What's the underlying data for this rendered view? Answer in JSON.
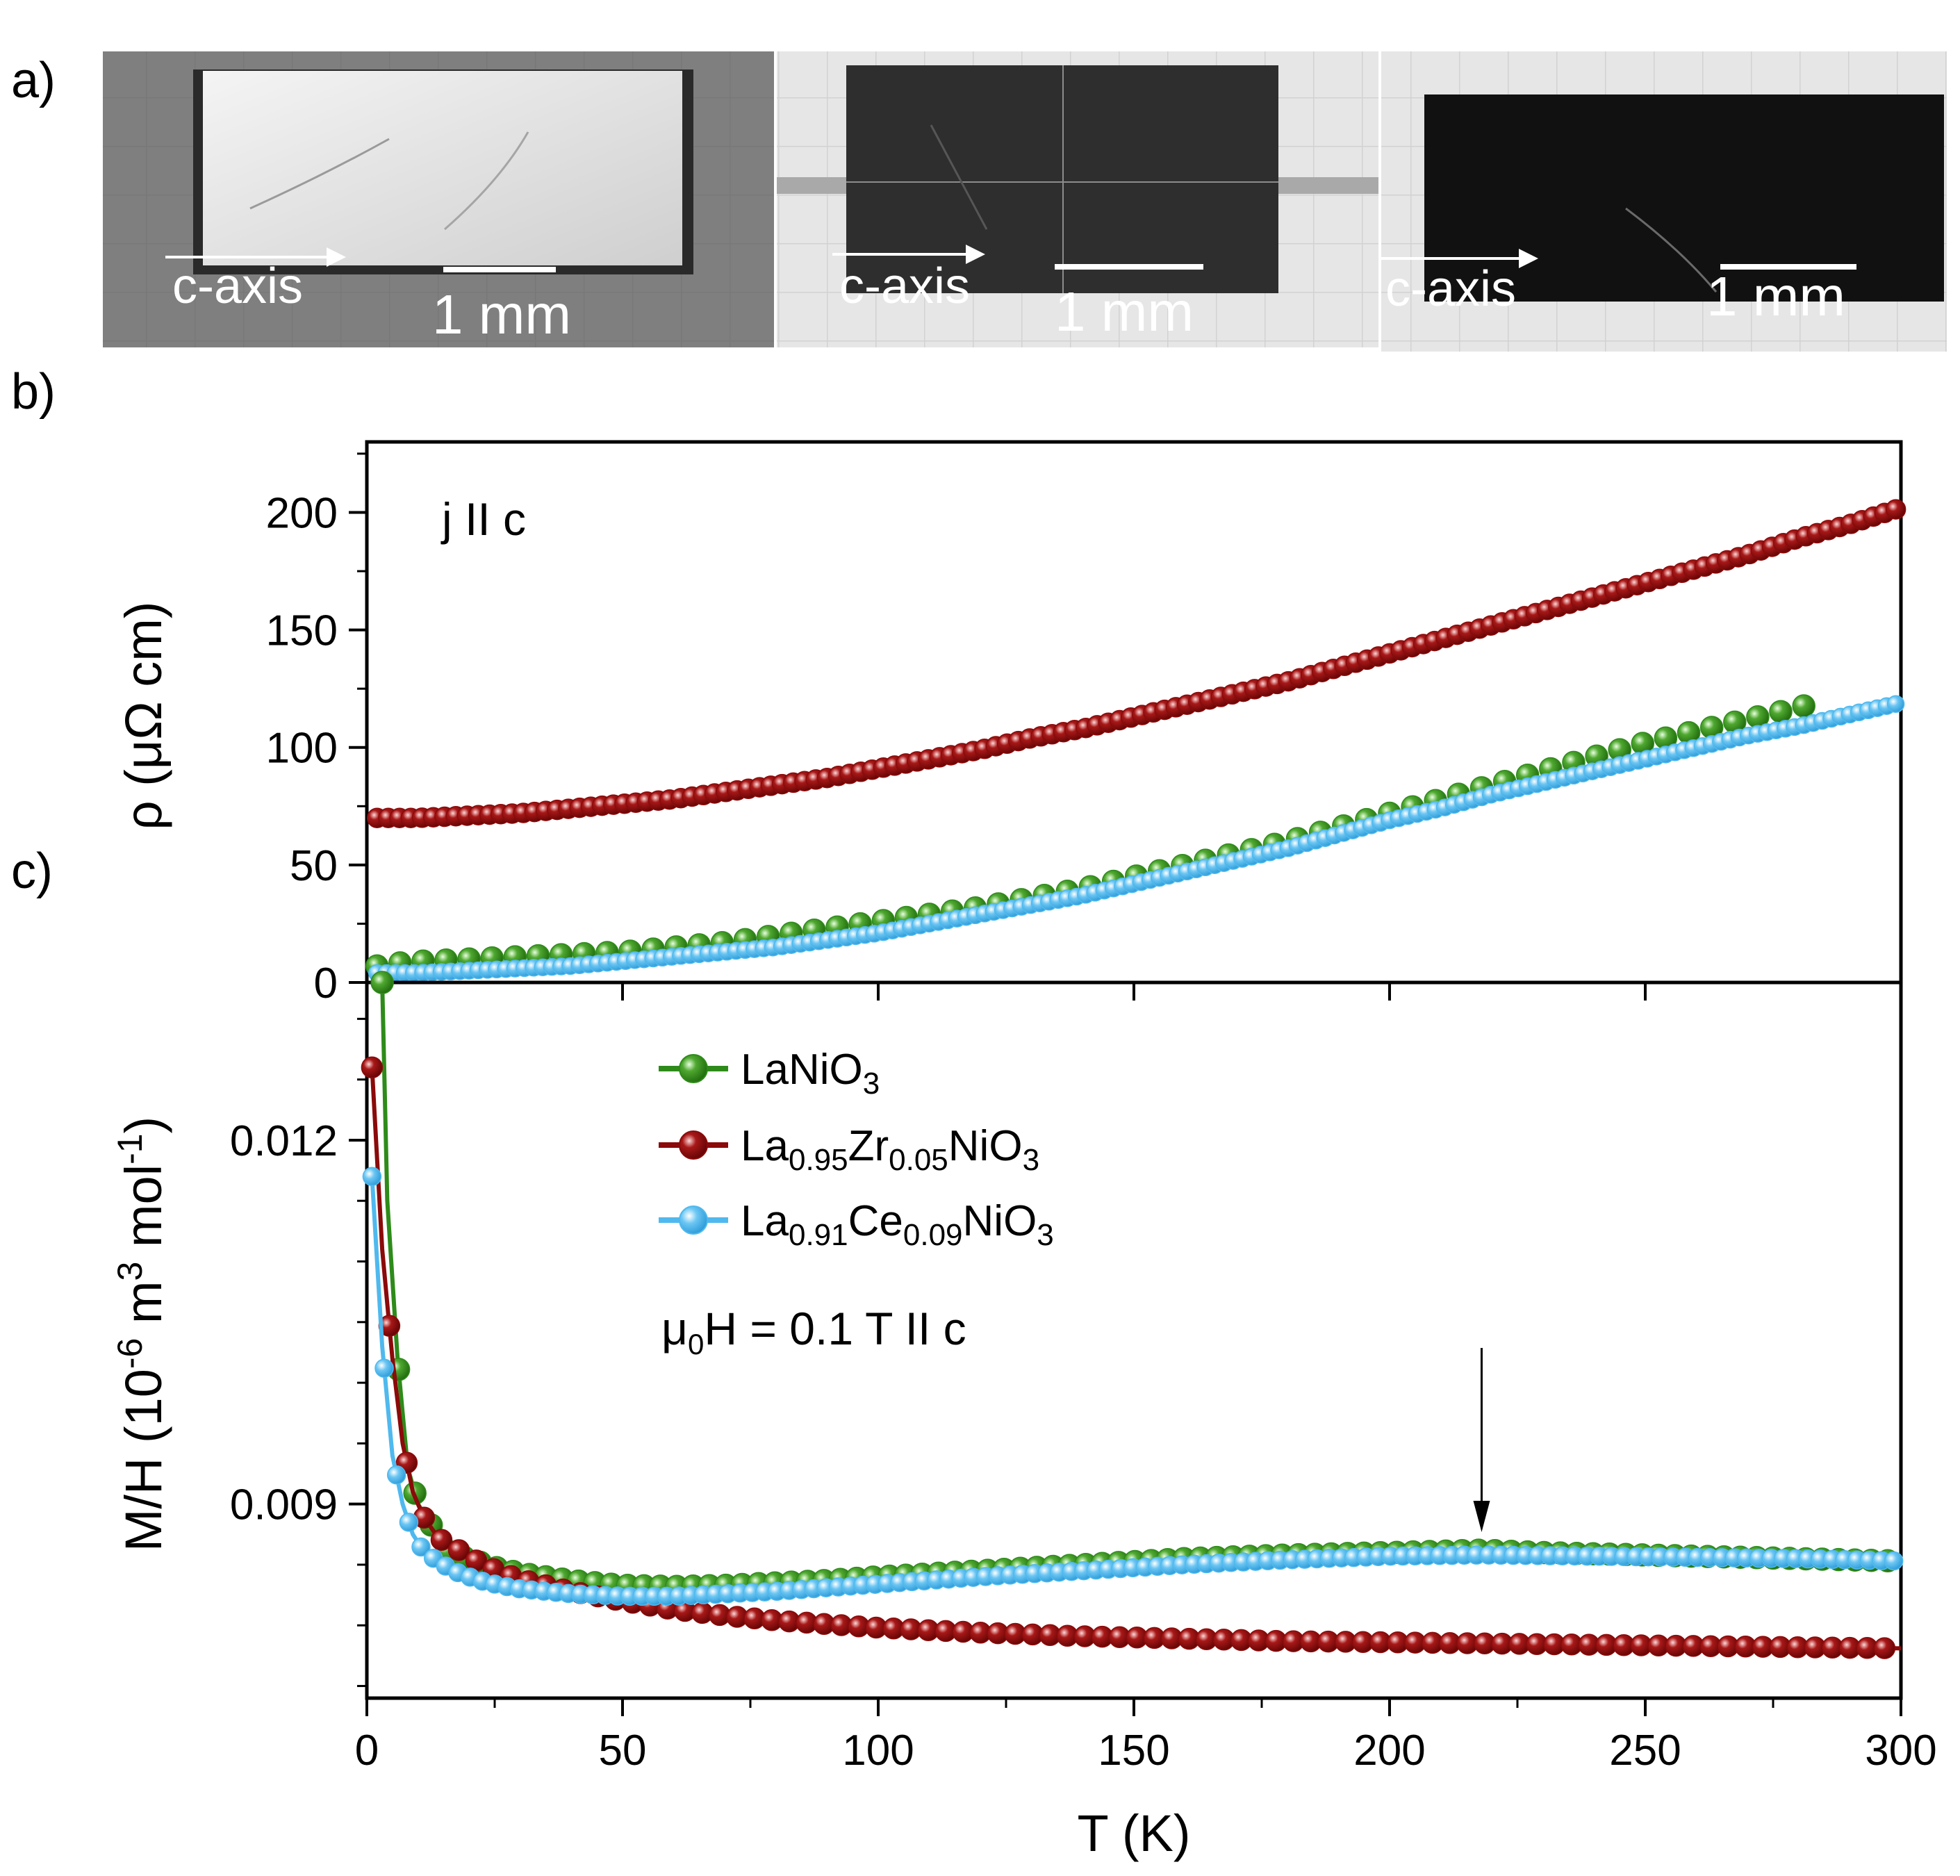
{
  "panels": {
    "a": "a)",
    "b": "b)",
    "c": "c)"
  },
  "photos": [
    {
      "axis_label": "c-axis",
      "scale_label": "1 mm",
      "tone": "light"
    },
    {
      "axis_label": "c-axis",
      "scale_label": "1 mm",
      "tone": "dark"
    },
    {
      "axis_label": "c-axis",
      "scale_label": "1 mm",
      "tone": "dark"
    }
  ],
  "colors": {
    "green": "#2e8b1a",
    "red": "#8b0a0a",
    "blue": "#4fb9ee"
  },
  "chart_data": [
    {
      "type": "scatter",
      "panel": "b",
      "annotation": "j II c",
      "xlabel": "",
      "ylabel": "ρ (μΩ cm)",
      "xlim": [
        0,
        300
      ],
      "ylim": [
        0,
        230
      ],
      "yticks": [
        0,
        50,
        100,
        150,
        200
      ],
      "series": [
        {
          "name": "LaNiO3",
          "color": "#2e8b1a",
          "x": [
            2,
            5,
            10,
            20,
            30,
            40,
            50,
            60,
            70,
            80,
            90,
            100,
            110,
            120,
            130,
            140,
            150,
            160,
            170,
            180,
            190,
            200,
            210,
            220,
            230,
            240,
            250,
            260,
            270,
            280,
            283
          ],
          "y": [
            7,
            8,
            9,
            10,
            11,
            12,
            13,
            15,
            17,
            20,
            23,
            26,
            29,
            32,
            36,
            40,
            45,
            50,
            55,
            60,
            66,
            72,
            78,
            84,
            90,
            96,
            102,
            107,
            112,
            117,
            119
          ]
        },
        {
          "name": "La0.95Zr0.05NiO3",
          "color": "#8b0a0a",
          "x": [
            2,
            10,
            20,
            30,
            40,
            50,
            60,
            70,
            80,
            90,
            100,
            110,
            120,
            130,
            140,
            150,
            160,
            170,
            180,
            190,
            200,
            210,
            220,
            230,
            240,
            250,
            260,
            270,
            280,
            290,
            300
          ],
          "y": [
            70,
            70,
            71,
            72,
            74,
            76,
            78,
            81,
            84,
            87,
            91,
            95,
            99,
            104,
            108,
            113,
            118,
            123,
            128,
            134,
            140,
            146,
            152,
            158,
            164,
            170,
            176,
            182,
            189,
            195,
            202
          ]
        },
        {
          "name": "La0.91Ce0.09NiO3",
          "color": "#4fb9ee",
          "x": [
            2,
            10,
            20,
            30,
            40,
            50,
            60,
            70,
            80,
            90,
            100,
            110,
            120,
            130,
            140,
            150,
            160,
            170,
            180,
            190,
            200,
            210,
            220,
            230,
            240,
            250,
            260,
            270,
            280,
            290,
            300
          ],
          "y": [
            4,
            4,
            5,
            6,
            7,
            9,
            11,
            13,
            15,
            18,
            21,
            25,
            29,
            33,
            37,
            42,
            47,
            52,
            57,
            63,
            69,
            74,
            80,
            85,
            90,
            95,
            100,
            105,
            109,
            114,
            119
          ]
        }
      ]
    },
    {
      "type": "line",
      "panel": "c",
      "xlabel": "T (K)",
      "ylabel_main": "M/H (10",
      "ylabel_exp1": "-6",
      "ylabel_mid": " m",
      "ylabel_exp2": "3",
      "ylabel_mid2": " mol",
      "ylabel_exp3": "-1",
      "ylabel_end": ")",
      "xlim": [
        0,
        300
      ],
      "ylim": [
        0.0074,
        0.0133
      ],
      "xticks": [
        0,
        50,
        100,
        150,
        200,
        250,
        300
      ],
      "yticks": [
        0.009,
        0.012
      ],
      "ytick_labels": [
        "0.009",
        "0.012"
      ],
      "arrow_at_T": 218,
      "field_label_mu": "μ",
      "field_label_sub": "0",
      "field_label_rest": "H = 0.1 T II c",
      "legend": [
        {
          "base": "LaNiO",
          "parts": [
            [
              "3",
              "sub"
            ]
          ]
        },
        {
          "base": "La",
          "parts": [
            [
              "0.95",
              "sub"
            ],
            [
              "Zr",
              "norm"
            ],
            [
              "0.05",
              "sub"
            ],
            [
              "NiO",
              "norm"
            ],
            [
              "3",
              "sub"
            ]
          ]
        },
        {
          "base": "La",
          "parts": [
            [
              "0.91",
              "sub"
            ],
            [
              "Ce",
              "norm"
            ],
            [
              "0.09",
              "sub"
            ],
            [
              "NiO",
              "norm"
            ],
            [
              "3",
              "sub"
            ]
          ]
        }
      ],
      "series": [
        {
          "name": "LaNiO3",
          "color": "#2e8b1a",
          "x": [
            3,
            4,
            6,
            8,
            10,
            13,
            16,
            20,
            25,
            30,
            40,
            50,
            60,
            70,
            80,
            90,
            100,
            120,
            140,
            160,
            180,
            200,
            218,
            230,
            250,
            270,
            290,
            300
          ],
          "y": [
            0.0133,
            0.0115,
            0.0102,
            0.0093,
            0.009,
            0.0088,
            0.0086,
            0.00855,
            0.00848,
            0.00843,
            0.00837,
            0.00833,
            0.00832,
            0.00833,
            0.00835,
            0.00837,
            0.0084,
            0.00845,
            0.0085,
            0.00855,
            0.00858,
            0.0086,
            0.00862,
            0.0086,
            0.00858,
            0.00856,
            0.00854,
            0.00853
          ]
        },
        {
          "name": "La0.95Zr0.05NiO3",
          "color": "#8b0a0a",
          "x": [
            1,
            3,
            5,
            7,
            9,
            11,
            14,
            18,
            22,
            26,
            30,
            40,
            50,
            60,
            70,
            80,
            100,
            120,
            140,
            160,
            180,
            200,
            220,
            240,
            260,
            280,
            300
          ],
          "y": [
            0.0126,
            0.0111,
            0.0102,
            0.0095,
            0.0091,
            0.0089,
            0.00872,
            0.00862,
            0.00852,
            0.00844,
            0.00838,
            0.00828,
            0.0082,
            0.00813,
            0.00808,
            0.00804,
            0.00798,
            0.00794,
            0.00791,
            0.00789,
            0.00787,
            0.00786,
            0.00785,
            0.00784,
            0.00783,
            0.00782,
            0.00781
          ]
        },
        {
          "name": "La0.91Ce0.09NiO3",
          "color": "#4fb9ee",
          "x": [
            1,
            3,
            5,
            7,
            9,
            11,
            14,
            18,
            22,
            26,
            30,
            40,
            50,
            60,
            70,
            80,
            100,
            120,
            140,
            160,
            180,
            200,
            218,
            240,
            260,
            280,
            300
          ],
          "y": [
            0.0117,
            0.0103,
            0.0094,
            0.009,
            0.00875,
            0.00862,
            0.00852,
            0.00843,
            0.00837,
            0.00833,
            0.0083,
            0.00826,
            0.00824,
            0.00824,
            0.00826,
            0.00828,
            0.00834,
            0.0084,
            0.00845,
            0.0085,
            0.00854,
            0.00857,
            0.00858,
            0.00857,
            0.00856,
            0.00855,
            0.00853
          ]
        }
      ]
    }
  ]
}
